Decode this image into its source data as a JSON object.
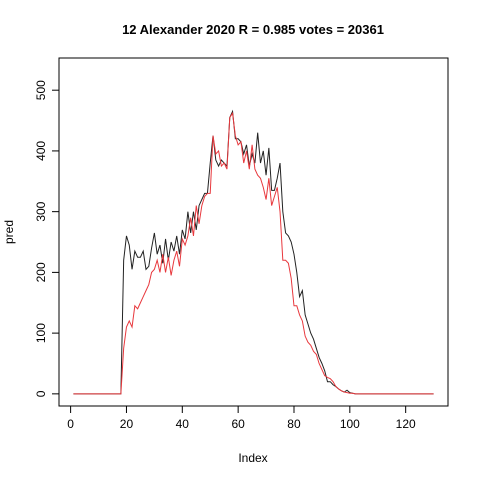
{
  "chart_data": {
    "type": "line",
    "title": "12 Alexander 2020 R = 0.985 votes = 20361",
    "xlabel": "Index",
    "ylabel": "pred",
    "x": [
      1,
      2,
      3,
      4,
      5,
      6,
      7,
      8,
      9,
      10,
      11,
      12,
      13,
      14,
      15,
      16,
      17,
      18,
      19,
      20,
      21,
      22,
      23,
      24,
      25,
      26,
      27,
      28,
      29,
      30,
      31,
      32,
      33,
      34,
      35,
      36,
      37,
      38,
      39,
      40,
      41,
      42,
      43,
      44,
      45,
      46,
      47,
      48,
      49,
      50,
      51,
      52,
      53,
      54,
      55,
      56,
      57,
      58,
      59,
      60,
      61,
      62,
      63,
      64,
      65,
      66,
      67,
      68,
      69,
      70,
      71,
      72,
      73,
      74,
      75,
      76,
      77,
      78,
      79,
      80,
      81,
      82,
      83,
      84,
      85,
      86,
      87,
      88,
      89,
      90,
      91,
      92,
      93,
      94,
      95,
      96,
      97,
      98,
      99,
      100,
      101,
      102,
      103,
      104,
      105,
      106,
      107,
      108,
      109,
      110,
      111,
      112,
      113,
      114,
      115,
      116,
      117,
      118,
      119,
      120,
      121,
      122,
      123,
      124,
      125,
      126,
      127,
      128,
      129,
      130
    ],
    "series": [
      {
        "color": "#222222",
        "values": [
          0,
          0,
          0,
          0,
          0,
          0,
          0,
          0,
          0,
          0,
          0,
          0,
          0,
          0,
          0,
          0,
          0,
          0,
          220,
          260,
          245,
          205,
          235,
          225,
          225,
          235,
          205,
          210,
          240,
          265,
          230,
          245,
          215,
          255,
          220,
          250,
          235,
          260,
          230,
          270,
          255,
          300,
          265,
          300,
          270,
          310,
          320,
          330,
          330,
          380,
          425,
          385,
          375,
          385,
          380,
          375,
          455,
          465,
          420,
          420,
          415,
          395,
          410,
          375,
          395,
          380,
          430,
          380,
          400,
          360,
          405,
          335,
          335,
          355,
          380,
          300,
          265,
          260,
          250,
          230,
          200,
          160,
          170,
          130,
          115,
          100,
          90,
          75,
          60,
          50,
          38,
          20,
          20,
          15,
          12,
          8,
          5,
          3,
          6,
          2,
          1,
          0,
          0,
          0,
          0,
          0,
          0,
          0,
          0,
          0,
          0,
          0,
          0,
          0,
          0,
          0,
          0,
          0,
          0,
          0,
          0,
          0,
          0,
          0,
          0,
          0,
          0,
          0,
          0,
          0
        ]
      },
      {
        "color": "#e8383d",
        "values": [
          0,
          0,
          0,
          0,
          0,
          0,
          0,
          0,
          0,
          0,
          0,
          0,
          0,
          0,
          0,
          0,
          0,
          0,
          75,
          110,
          120,
          110,
          145,
          140,
          150,
          160,
          170,
          180,
          200,
          205,
          220,
          200,
          230,
          200,
          225,
          195,
          220,
          235,
          210,
          255,
          245,
          260,
          290,
          260,
          310,
          280,
          310,
          325,
          330,
          330,
          425,
          395,
          400,
          375,
          380,
          370,
          455,
          462,
          425,
          410,
          415,
          380,
          400,
          370,
          410,
          370,
          360,
          355,
          340,
          320,
          355,
          310,
          325,
          340,
          300,
          220,
          220,
          215,
          190,
          145,
          145,
          130,
          120,
          95,
          85,
          80,
          70,
          65,
          50,
          40,
          30,
          27,
          25,
          20,
          12,
          8,
          5,
          3,
          2,
          1,
          1,
          0,
          0,
          0,
          0,
          0,
          0,
          0,
          0,
          0,
          0,
          0,
          0,
          0,
          0,
          0,
          0,
          0,
          0,
          0,
          0,
          0,
          0,
          0,
          0,
          0,
          0,
          0,
          0,
          0
        ]
      }
    ],
    "xlim": [
      -4.16,
      135.16
    ],
    "ylim": [
      -20,
      553
    ],
    "xticks": [
      0,
      20,
      40,
      60,
      80,
      100,
      120
    ],
    "yticks": [
      0,
      100,
      200,
      300,
      400,
      500
    ]
  }
}
